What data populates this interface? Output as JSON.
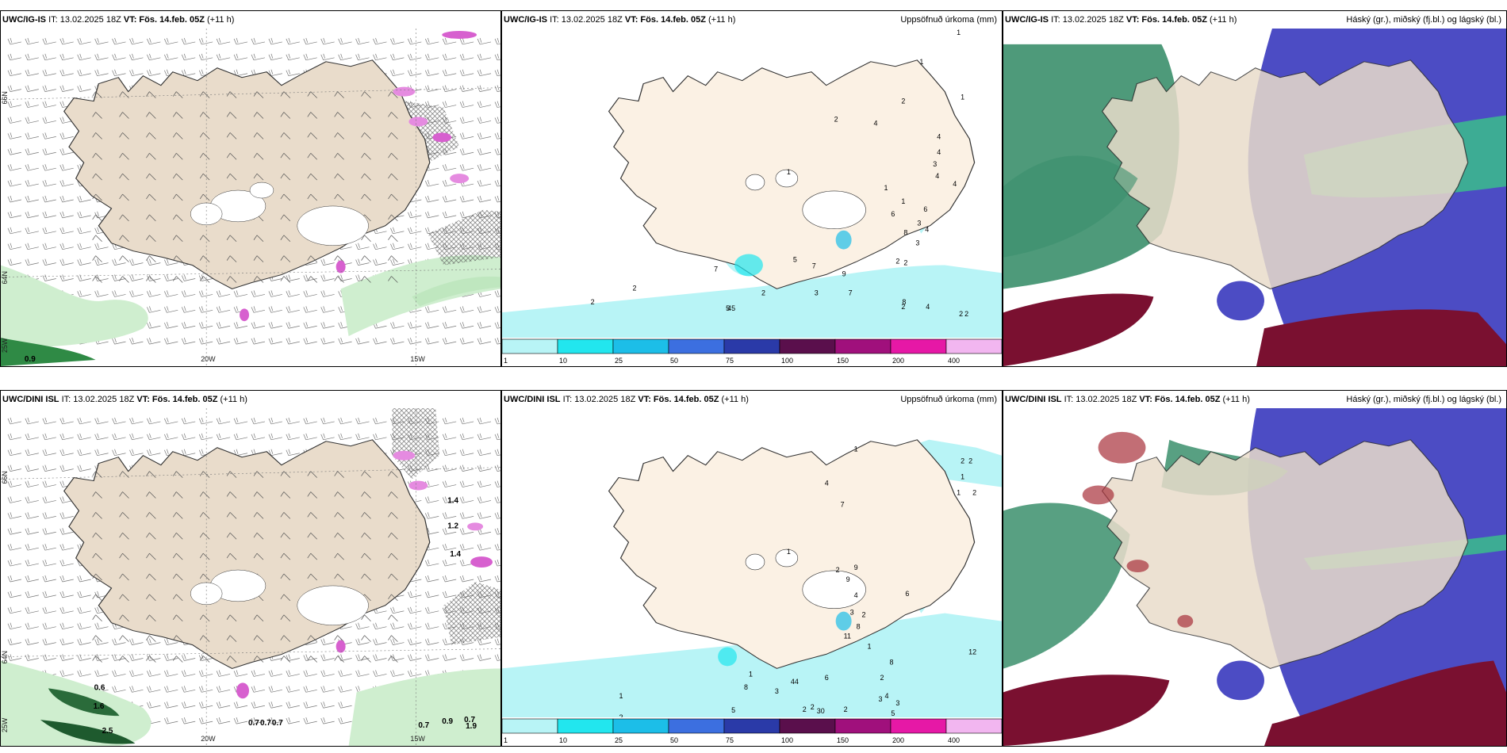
{
  "panels": {
    "p1": {
      "model": "UWC/IG-IS",
      "it": "IT: 13.02.2025 18Z",
      "vt_label": "VT:",
      "vt": "Fös. 14.feb. 05Z",
      "lead": "(+11 h)",
      "right": ""
    },
    "p2": {
      "model": "UWC/IG-IS",
      "it": "IT: 13.02.2025 18Z",
      "vt_label": "VT:",
      "vt": "Fös. 14.feb. 05Z",
      "lead": "(+11 h)",
      "right": "Uppsöfnuð úrkoma (mm)"
    },
    "p3": {
      "model": "UWC/IG-IS",
      "it": "IT: 13.02.2025 18Z",
      "vt_label": "VT:",
      "vt": "Fös. 14.feb. 05Z",
      "lead": "(+11 h)",
      "right": "Háský (gr.), miðský (fj.bl.) og lágský (bl.)"
    },
    "p4": {
      "model": "UWC/DINI ISL",
      "it": "IT: 13.02.2025 18Z",
      "vt_label": "VT:",
      "vt": "Fös. 14.feb. 05Z",
      "lead": "(+11 h)",
      "right": ""
    },
    "p5": {
      "model": "UWC/DINI ISL",
      "it": "IT: 13.02.2025 18Z",
      "vt_label": "VT:",
      "vt": "Fös. 14.feb. 05Z",
      "lead": "(+11 h)",
      "right": "Uppsöfnuð úrkoma (mm)"
    },
    "p6": {
      "model": "UWC/DINI ISL",
      "it": "IT: 13.02.2025 18Z",
      "vt_label": "VT:",
      "vt": "Fös. 14.feb. 05Z",
      "lead": "(+11 h)",
      "right": "Háský (gr.), miðský (fj.bl.) og lágský (bl.)"
    }
  },
  "axis_labels": {
    "lat66": "66N",
    "lat64": "64N",
    "lon25": "25W",
    "lon20": "20W",
    "lon15": "15W"
  },
  "wind_panel_values": {
    "p1": [
      "0.9"
    ],
    "p4": [
      "0.6",
      "1.6",
      "2.5",
      "0.7",
      "0.7",
      "0.7",
      "0.7",
      "0.9",
      "0.7",
      "1.9",
      "1.4",
      "1.2",
      "1.4"
    ]
  },
  "precip_values": {
    "p2": [
      "1",
      "1",
      "1",
      "2",
      "2",
      "4",
      "4",
      "4",
      "3",
      "4",
      "1",
      "4",
      "1",
      "1",
      "6",
      "6",
      "3",
      "8",
      "4",
      "3",
      "2",
      "5",
      "2",
      "9",
      "7",
      "7",
      "8",
      "2",
      "4",
      "2",
      "2",
      "2",
      "3",
      "5",
      "7",
      "45",
      "2",
      "2"
    ],
    "p5": [
      "1",
      "2",
      "2",
      "1",
      "1",
      "2",
      "4",
      "7",
      "1",
      "2",
      "9",
      "9",
      "4",
      "3",
      "6",
      "2",
      "8",
      "11",
      "12",
      "1",
      "8",
      "2",
      "6",
      "4",
      "3",
      "1",
      "8",
      "3",
      "2",
      "30",
      "44",
      "3",
      "2",
      "2",
      "5",
      "5",
      "3",
      "1",
      "2"
    ]
  },
  "legend": {
    "labels": [
      "1",
      "10",
      "25",
      "50",
      "75",
      "100",
      "150",
      "200",
      "400"
    ],
    "colors": [
      "#b8f4f6",
      "#22e6ee",
      "#1cbee8",
      "#3c6fe0",
      "#2a3aa8",
      "#5a0f4c",
      "#a0107c",
      "#e618a6",
      "#f2b6f0"
    ]
  },
  "colors": {
    "land": "#e9dccb",
    "land2": "#fbf1e4",
    "sea": "#ffffff",
    "green_light": "#bff0bf",
    "green_dark": "#1e6b2e",
    "cloud_high": "#3b8f6c",
    "cloud_mid": "#4c4cc4",
    "cloud_low": "#7a1030",
    "cyan_precip": "#b8f4f6"
  }
}
